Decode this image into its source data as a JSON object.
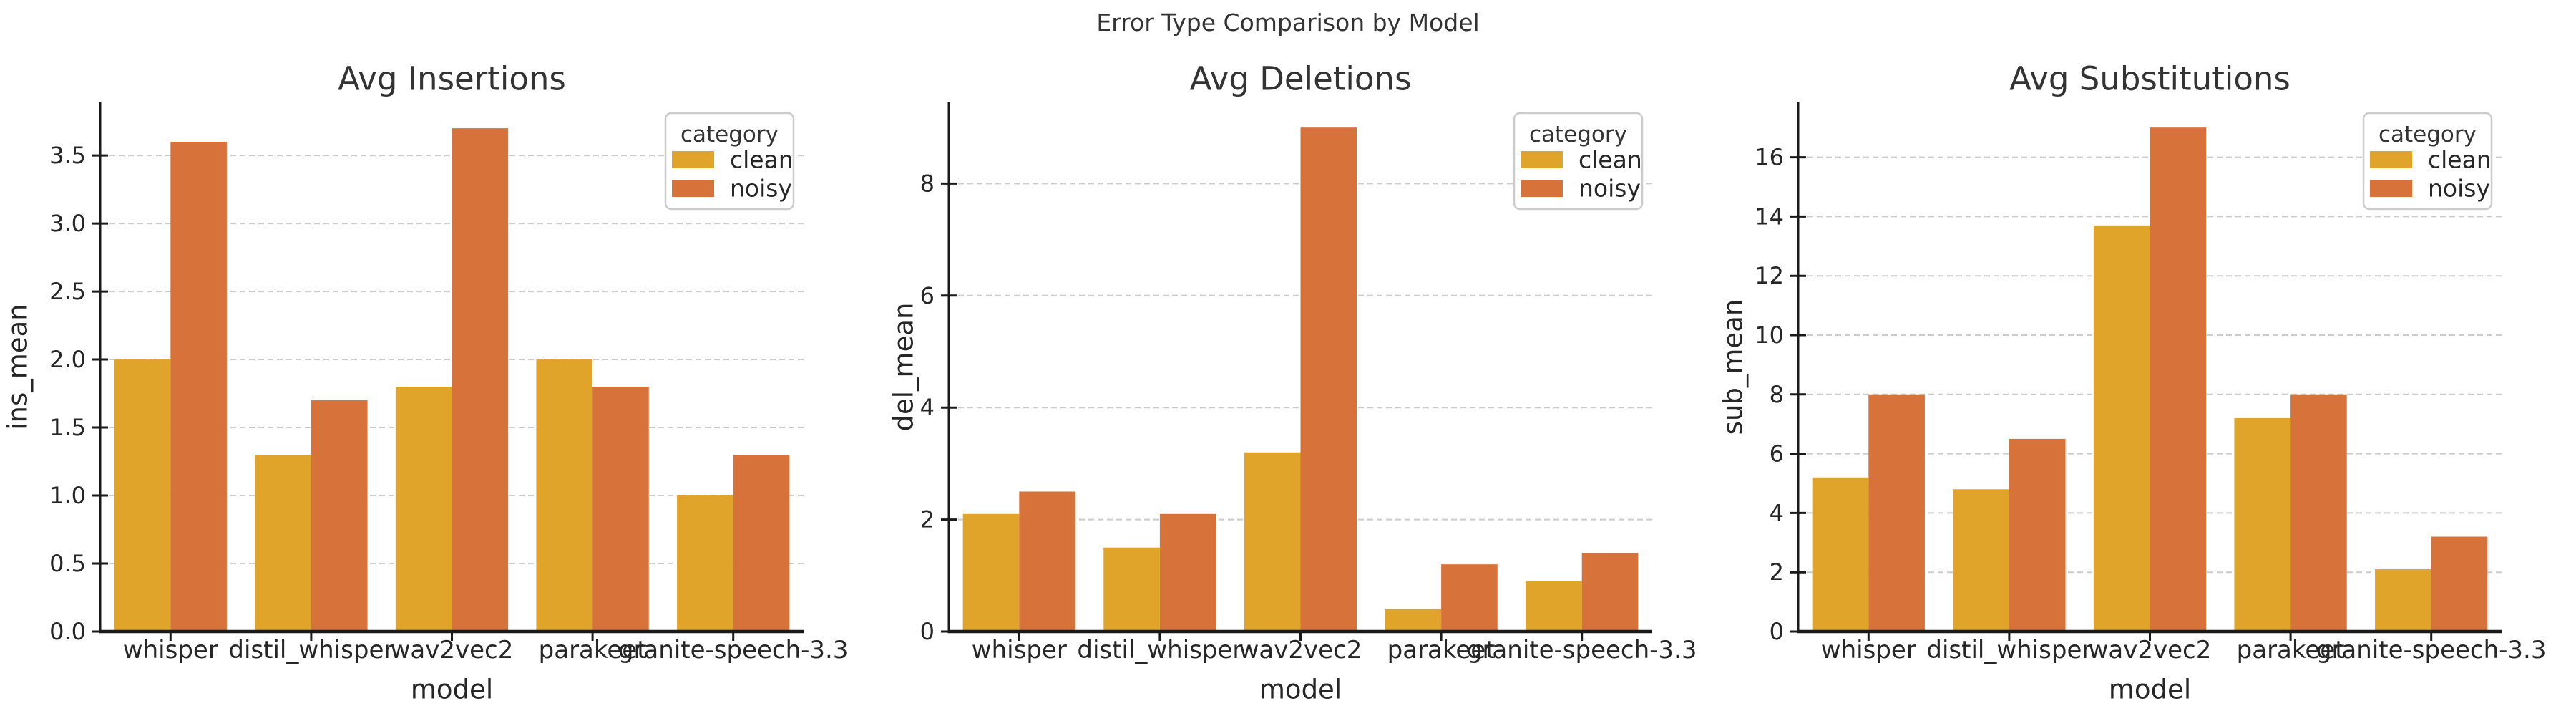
{
  "figure": {
    "suptitle": "Error Type Comparison by Model",
    "background_color": "#ffffff",
    "text_color": "#262626"
  },
  "legend": {
    "title": "category",
    "position": "upper right",
    "entries": [
      {
        "label": "clean",
        "color": "#e0a42a"
      },
      {
        "label": "noisy",
        "color": "#d8723b"
      }
    ]
  },
  "chart_data": [
    {
      "type": "bar",
      "title": "Avg Insertions",
      "xlabel": "model",
      "ylabel": "ins_mean",
      "categories": [
        "whisper",
        "distil_whisper",
        "wav2vec2",
        "parakeet",
        "granite-speech-3.3"
      ],
      "series": [
        {
          "name": "clean",
          "color": "#e0a42a",
          "values": [
            2.0,
            1.3,
            1.8,
            2.0,
            1.0
          ]
        },
        {
          "name": "noisy",
          "color": "#d8723b",
          "values": [
            3.6,
            1.7,
            3.7,
            1.8,
            1.3
          ]
        }
      ],
      "ylim": [
        0,
        3.89
      ],
      "yticks": {
        "values": [
          0,
          0.5,
          1.0,
          1.5,
          2.0,
          2.5,
          3.0,
          3.5
        ],
        "labels": [
          "0.0",
          "0.5",
          "1.0",
          "1.5",
          "2.0",
          "2.5",
          "3.0",
          "3.5"
        ]
      },
      "grid": true,
      "legend_position": "upper right"
    },
    {
      "type": "bar",
      "title": "Avg Deletions",
      "xlabel": "model",
      "ylabel": "del_mean",
      "categories": [
        "whisper",
        "distil_whisper",
        "wav2vec2",
        "parakeet",
        "granite-speech-3.3"
      ],
      "series": [
        {
          "name": "clean",
          "color": "#e0a42a",
          "values": [
            2.1,
            1.5,
            3.2,
            0.4,
            0.9
          ]
        },
        {
          "name": "noisy",
          "color": "#d8723b",
          "values": [
            2.5,
            2.1,
            9.0,
            1.2,
            1.4
          ]
        }
      ],
      "ylim": [
        0,
        9.45
      ],
      "yticks": {
        "values": [
          0,
          2,
          4,
          6,
          8
        ],
        "labels": [
          "0",
          "2",
          "4",
          "6",
          "8"
        ]
      },
      "grid": true,
      "legend_position": "upper right"
    },
    {
      "type": "bar",
      "title": "Avg Substitutions",
      "xlabel": "model",
      "ylabel": "sub_mean",
      "categories": [
        "whisper",
        "distil_whisper",
        "wav2vec2",
        "parakeet",
        "granite-speech-3.3"
      ],
      "series": [
        {
          "name": "clean",
          "color": "#e0a42a",
          "values": [
            5.2,
            4.8,
            13.7,
            7.2,
            2.1
          ]
        },
        {
          "name": "noisy",
          "color": "#d8723b",
          "values": [
            8.0,
            6.5,
            17.0,
            8.0,
            3.2
          ]
        }
      ],
      "ylim": [
        0,
        17.85
      ],
      "yticks": {
        "values": [
          0,
          2,
          4,
          6,
          8,
          10,
          12,
          14,
          16
        ],
        "labels": [
          "0",
          "2",
          "4",
          "6",
          "8",
          "10",
          "12",
          "14",
          "16"
        ]
      },
      "grid": true,
      "legend_position": "upper right"
    }
  ]
}
